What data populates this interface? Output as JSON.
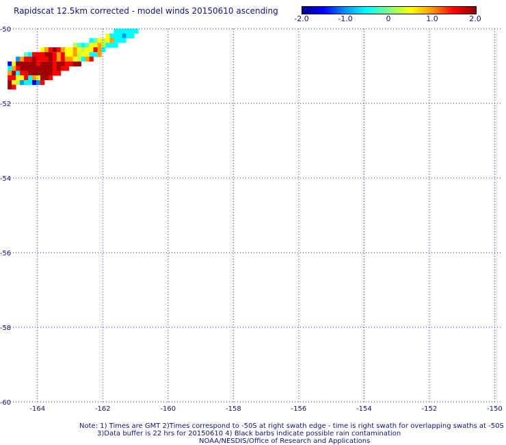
{
  "title": "Rapidscat 12.5km corrected - model winds 20150610 ascending",
  "colorbar": {
    "ticks": [
      "-2.0",
      "-1.0",
      "0",
      "1.0",
      "2.0"
    ],
    "tick_values": [
      -2.0,
      -1.0,
      0,
      1.0,
      2.0
    ],
    "colors": [
      "#00008b",
      "#0000ff",
      "#0096ff",
      "#00ffff",
      "#80ff80",
      "#ffff00",
      "#ff9600",
      "#ff0000",
      "#8b0000"
    ]
  },
  "notes": {
    "line1": "Note: 1) Times are GMT 2)Times correspond to -50S at right swath edge - time is right swath for overlapping swaths at -50S",
    "line2": "3)Data buffer is 22 hrs for 20150610 4) Black barbs indicate possible rain contamination",
    "line3": "NOAA/NESDIS/Office of Research and Applications"
  },
  "chart_data": {
    "type": "heatmap",
    "title": "Rapidscat 12.5km corrected - model winds 20150610 ascending",
    "xlabel": "",
    "ylabel": "",
    "x_tick_labels": [
      "-164",
      "-162",
      "-160",
      "-158",
      "-156",
      "-154",
      "-152",
      "-150"
    ],
    "y_tick_labels": [
      "-50",
      "-52",
      "-54",
      "-56",
      "-58",
      "-60"
    ],
    "xlim": [
      -165.0,
      -149.8
    ],
    "ylim": [
      -60.0,
      -50.0
    ],
    "value_range": [
      -2.0,
      2.0
    ],
    "value_colors": {
      "-2": "#0000ff",
      "-1.5": "#0096ff",
      "-1": "#00ffff",
      "-0.5": "#60ffc0",
      "0": "#c0ff40",
      "0.5": "#ffff00",
      "1": "#ffa000",
      "1.5": "#ff0000",
      "2": "#a00000"
    },
    "cell_size_deg": 0.125,
    "rows": [
      {
        "lat": -50.06,
        "lon_start": -161.6,
        "values": [
          -1.0,
          -1.0,
          -1.0,
          -1.0,
          -1.0,
          -1.0
        ]
      },
      {
        "lat": -50.19,
        "lon_start": -161.85,
        "values": [
          0.5,
          -1.0,
          -1.0,
          -1.0,
          -1.5,
          -1.0,
          -1.0
        ]
      },
      {
        "lat": -50.31,
        "lon_start": -162.35,
        "values": [
          -1.0,
          -0.5,
          0.5,
          0.0,
          0.5,
          1.0,
          -1.0,
          -1.0,
          -1.0
        ]
      },
      {
        "lat": -50.44,
        "lon_start": -162.85,
        "values": [
          0.0,
          -0.5,
          -1.0,
          -0.5,
          0.5,
          0.5,
          1.0,
          0.0,
          -1.0,
          -1.0,
          -1.0
        ]
      },
      {
        "lat": -50.56,
        "lon_start": -163.85,
        "values": [
          0.5,
          1.0,
          1.5,
          2.0,
          1.5,
          1.0,
          0.5,
          0.5,
          1.0,
          0.5,
          0.0,
          0.5,
          0.5,
          1.5,
          1.0,
          -1.0
        ]
      },
      {
        "lat": -50.69,
        "lon_start": -164.35,
        "values": [
          -0.5,
          -1.0,
          1.5,
          1.5,
          1.5,
          2.0,
          2.0,
          1.5,
          1.0,
          1.5,
          0.5,
          0.5,
          1.0,
          0.0,
          0.5,
          0.5,
          -1.0,
          -1.0,
          1.0
        ]
      },
      {
        "lat": -50.81,
        "lon_start": -164.6,
        "values": [
          -1.5,
          1.0,
          1.5,
          1.5,
          2.0,
          1.5,
          1.5,
          1.5,
          2.0,
          1.5,
          1.0,
          1.5,
          1.0,
          1.0,
          0.5,
          0.0,
          -1.0,
          1.0,
          1.5
        ]
      },
      {
        "lat": -50.94,
        "lon_start": -164.85,
        "values": [
          -2.0,
          0.5,
          2.0,
          2.0,
          2.0,
          2.0,
          2.0,
          1.5,
          2.0,
          2.0,
          2.0,
          1.5,
          2.0,
          2.0,
          1.5,
          1.5,
          2.0,
          2.0
        ]
      },
      {
        "lat": -51.06,
        "lon_start": -164.85,
        "values": [
          -1.0,
          1.0,
          1.5,
          2.0,
          2.0,
          2.0,
          2.0,
          2.0,
          2.0,
          2.0,
          2.0,
          1.5,
          2.0,
          1.5,
          1.5
        ]
      },
      {
        "lat": -51.19,
        "lon_start": -164.85,
        "values": [
          1.0,
          2.0,
          -1.0,
          1.5,
          1.5,
          2.0,
          2.0,
          2.0,
          2.0,
          2.0,
          2.0,
          1.5,
          1.5
        ]
      },
      {
        "lat": -51.31,
        "lon_start": -164.85,
        "values": [
          1.5,
          1.5,
          0.5,
          0.5,
          1.5,
          -1.0,
          1.0,
          0.5,
          2.0,
          2.0,
          1.5
        ]
      },
      {
        "lat": -51.44,
        "lon_start": -164.85,
        "values": [
          2.0,
          0.5,
          0.0,
          -1.5,
          -1.0,
          -1.0,
          -2.0,
          -1.5,
          1.5
        ]
      },
      {
        "lat": -51.56,
        "lon_start": -164.85,
        "values": [
          2.0,
          1.5
        ]
      }
    ]
  }
}
